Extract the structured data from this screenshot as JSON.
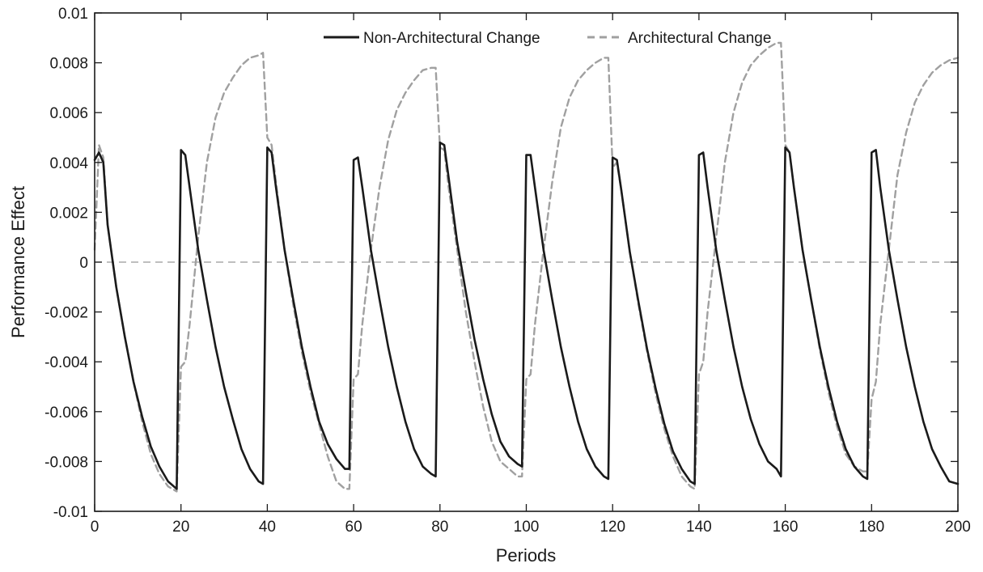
{
  "chart_data": {
    "type": "line",
    "title": "",
    "xlabel": "Periods",
    "ylabel": "Performance Effect",
    "xlim": [
      0,
      200
    ],
    "ylim": [
      -0.01,
      0.01
    ],
    "x_ticks": [
      0,
      20,
      40,
      60,
      80,
      100,
      120,
      140,
      160,
      180,
      200
    ],
    "y_ticks": [
      -0.01,
      -0.008,
      -0.006,
      -0.004,
      -0.002,
      0,
      0.002,
      0.004,
      0.006,
      0.008,
      0.01
    ],
    "x_tick_labels": [
      "0",
      "20",
      "40",
      "60",
      "80",
      "100",
      "120",
      "140",
      "160",
      "180",
      "200"
    ],
    "y_tick_labels": [
      "-0.01",
      "-0.008",
      "-0.006",
      "-0.004",
      "-0.002",
      "0",
      "0.002",
      "0.004",
      "0.006",
      "0.008",
      "0.01"
    ],
    "grid": false,
    "legend_position": "top",
    "reference_line": {
      "y": 0,
      "style": "dashed",
      "color": "#999999"
    },
    "series": [
      {
        "name": "Non-Architectural Change",
        "color": "#1a1a1a",
        "style": "solid",
        "points": [
          [
            0,
            0.0041
          ],
          [
            1,
            0.0044
          ],
          [
            2,
            0.004
          ],
          [
            3,
            0.0015
          ],
          [
            5,
            -0.001
          ],
          [
            7,
            -0.003
          ],
          [
            9,
            -0.0048
          ],
          [
            11,
            -0.0062
          ],
          [
            13,
            -0.0074
          ],
          [
            15,
            -0.0082
          ],
          [
            17,
            -0.0088
          ],
          [
            19,
            -0.0091
          ],
          [
            20,
            0.0045
          ],
          [
            21,
            0.0043
          ],
          [
            22,
            0.003
          ],
          [
            24,
            0.0005
          ],
          [
            26,
            -0.0015
          ],
          [
            28,
            -0.0034
          ],
          [
            30,
            -0.005
          ],
          [
            32,
            -0.0063
          ],
          [
            34,
            -0.0075
          ],
          [
            36,
            -0.0083
          ],
          [
            38,
            -0.0088
          ],
          [
            39,
            -0.0089
          ],
          [
            40,
            0.0046
          ],
          [
            41,
            0.0044
          ],
          [
            42,
            0.003
          ],
          [
            44,
            0.0005
          ],
          [
            46,
            -0.0015
          ],
          [
            48,
            -0.0034
          ],
          [
            50,
            -0.005
          ],
          [
            52,
            -0.0064
          ],
          [
            54,
            -0.0073
          ],
          [
            56,
            -0.0079
          ],
          [
            58,
            -0.0083
          ],
          [
            59,
            -0.0083
          ],
          [
            60,
            0.0041
          ],
          [
            61,
            0.0042
          ],
          [
            62,
            0.003
          ],
          [
            64,
            0.0005
          ],
          [
            66,
            -0.0015
          ],
          [
            68,
            -0.0034
          ],
          [
            70,
            -0.005
          ],
          [
            72,
            -0.0064
          ],
          [
            74,
            -0.0075
          ],
          [
            76,
            -0.0082
          ],
          [
            78,
            -0.0085
          ],
          [
            79,
            -0.0086
          ],
          [
            80,
            0.0048
          ],
          [
            81,
            0.0047
          ],
          [
            82,
            0.0034
          ],
          [
            84,
            0.0008
          ],
          [
            86,
            -0.0012
          ],
          [
            88,
            -0.0031
          ],
          [
            90,
            -0.0047
          ],
          [
            92,
            -0.0061
          ],
          [
            94,
            -0.0072
          ],
          [
            96,
            -0.0078
          ],
          [
            98,
            -0.0081
          ],
          [
            99,
            -0.0082
          ],
          [
            100,
            0.0043
          ],
          [
            101,
            0.0043
          ],
          [
            102,
            0.003
          ],
          [
            104,
            0.0005
          ],
          [
            106,
            -0.0015
          ],
          [
            108,
            -0.0034
          ],
          [
            110,
            -0.005
          ],
          [
            112,
            -0.0064
          ],
          [
            114,
            -0.0075
          ],
          [
            116,
            -0.0082
          ],
          [
            118,
            -0.0086
          ],
          [
            119,
            -0.0087
          ],
          [
            120,
            0.0042
          ],
          [
            121,
            0.0041
          ],
          [
            122,
            0.0029
          ],
          [
            124,
            0.0004
          ],
          [
            126,
            -0.0016
          ],
          [
            128,
            -0.0035
          ],
          [
            130,
            -0.0051
          ],
          [
            132,
            -0.0065
          ],
          [
            134,
            -0.0076
          ],
          [
            136,
            -0.0083
          ],
          [
            138,
            -0.0088
          ],
          [
            139,
            -0.0089
          ],
          [
            140,
            0.0043
          ],
          [
            141,
            0.0044
          ],
          [
            142,
            0.003
          ],
          [
            144,
            0.0005
          ],
          [
            146,
            -0.0015
          ],
          [
            148,
            -0.0034
          ],
          [
            150,
            -0.005
          ],
          [
            152,
            -0.0063
          ],
          [
            154,
            -0.0073
          ],
          [
            156,
            -0.008
          ],
          [
            158,
            -0.0083
          ],
          [
            159,
            -0.0086
          ],
          [
            160,
            0.0046
          ],
          [
            161,
            0.0044
          ],
          [
            162,
            0.003
          ],
          [
            164,
            0.0005
          ],
          [
            166,
            -0.0015
          ],
          [
            168,
            -0.0034
          ],
          [
            170,
            -0.005
          ],
          [
            172,
            -0.0064
          ],
          [
            174,
            -0.0075
          ],
          [
            176,
            -0.0082
          ],
          [
            178,
            -0.0086
          ],
          [
            179,
            -0.0087
          ],
          [
            180,
            0.0044
          ],
          [
            181,
            0.0045
          ],
          [
            182,
            0.003
          ],
          [
            184,
            0.0005
          ],
          [
            186,
            -0.0015
          ],
          [
            188,
            -0.0034
          ],
          [
            190,
            -0.005
          ],
          [
            192,
            -0.0064
          ],
          [
            194,
            -0.0075
          ],
          [
            196,
            -0.0082
          ],
          [
            198,
            -0.0088
          ],
          [
            200,
            -0.0089
          ]
        ]
      },
      {
        "name": "Architectural Change",
        "color": "#a0a0a0",
        "style": "dashed",
        "points": [
          [
            0,
            0.0005
          ],
          [
            1,
            0.0047
          ],
          [
            2,
            0.0042
          ],
          [
            3,
            0.0015
          ],
          [
            5,
            -0.001
          ],
          [
            7,
            -0.003
          ],
          [
            9,
            -0.0048
          ],
          [
            11,
            -0.0064
          ],
          [
            13,
            -0.0077
          ],
          [
            15,
            -0.0085
          ],
          [
            17,
            -0.009
          ],
          [
            19,
            -0.0092
          ],
          [
            20,
            -0.0042
          ],
          [
            21,
            -0.004
          ],
          [
            22,
            -0.0025
          ],
          [
            24,
            0.001
          ],
          [
            26,
            0.004
          ],
          [
            28,
            0.0058
          ],
          [
            30,
            0.0068
          ],
          [
            32,
            0.0074
          ],
          [
            34,
            0.0079
          ],
          [
            36,
            0.0082
          ],
          [
            38,
            0.0083
          ],
          [
            39,
            0.0084
          ],
          [
            40,
            0.005
          ],
          [
            41,
            0.0047
          ],
          [
            42,
            0.0032
          ],
          [
            44,
            0.0005
          ],
          [
            46,
            -0.0017
          ],
          [
            48,
            -0.0036
          ],
          [
            50,
            -0.0052
          ],
          [
            52,
            -0.0065
          ],
          [
            54,
            -0.0078
          ],
          [
            56,
            -0.0088
          ],
          [
            58,
            -0.0091
          ],
          [
            59,
            -0.0091
          ],
          [
            60,
            -0.0047
          ],
          [
            61,
            -0.0045
          ],
          [
            62,
            -0.0025
          ],
          [
            64,
            0.0005
          ],
          [
            66,
            0.003
          ],
          [
            68,
            0.0049
          ],
          [
            70,
            0.0061
          ],
          [
            72,
            0.0068
          ],
          [
            74,
            0.0073
          ],
          [
            76,
            0.0077
          ],
          [
            78,
            0.0078
          ],
          [
            79,
            0.0078
          ],
          [
            80,
            0.0046
          ],
          [
            81,
            0.0045
          ],
          [
            82,
            0.003
          ],
          [
            84,
            0.0005
          ],
          [
            86,
            -0.002
          ],
          [
            88,
            -0.004
          ],
          [
            90,
            -0.0058
          ],
          [
            92,
            -0.0072
          ],
          [
            94,
            -0.008
          ],
          [
            96,
            -0.0083
          ],
          [
            98,
            -0.0086
          ],
          [
            99,
            -0.0086
          ],
          [
            100,
            -0.0047
          ],
          [
            101,
            -0.0045
          ],
          [
            102,
            -0.0025
          ],
          [
            104,
            0.0005
          ],
          [
            106,
            0.0032
          ],
          [
            108,
            0.0054
          ],
          [
            110,
            0.0066
          ],
          [
            112,
            0.0073
          ],
          [
            114,
            0.0077
          ],
          [
            116,
            0.008
          ],
          [
            118,
            0.0082
          ],
          [
            119,
            0.0082
          ],
          [
            120,
            0.0038
          ],
          [
            121,
            0.004
          ],
          [
            122,
            0.0029
          ],
          [
            124,
            0.0004
          ],
          [
            126,
            -0.0017
          ],
          [
            128,
            -0.0036
          ],
          [
            130,
            -0.0053
          ],
          [
            132,
            -0.0067
          ],
          [
            134,
            -0.0078
          ],
          [
            136,
            -0.0086
          ],
          [
            138,
            -0.009
          ],
          [
            139,
            -0.0091
          ],
          [
            140,
            -0.0045
          ],
          [
            141,
            -0.004
          ],
          [
            142,
            -0.002
          ],
          [
            144,
            0.001
          ],
          [
            146,
            0.004
          ],
          [
            148,
            0.006
          ],
          [
            150,
            0.0072
          ],
          [
            152,
            0.0079
          ],
          [
            154,
            0.0083
          ],
          [
            156,
            0.0086
          ],
          [
            158,
            0.0088
          ],
          [
            159,
            0.0088
          ],
          [
            160,
            0.0047
          ],
          [
            161,
            0.0044
          ],
          [
            162,
            0.003
          ],
          [
            164,
            0.0005
          ],
          [
            166,
            -0.0015
          ],
          [
            168,
            -0.0035
          ],
          [
            170,
            -0.0052
          ],
          [
            172,
            -0.0066
          ],
          [
            174,
            -0.0077
          ],
          [
            176,
            -0.0082
          ],
          [
            178,
            -0.0084
          ],
          [
            179,
            -0.0084
          ],
          [
            180,
            -0.0055
          ],
          [
            181,
            -0.0048
          ],
          [
            182,
            -0.0025
          ],
          [
            184,
            0.0005
          ],
          [
            186,
            0.0035
          ],
          [
            188,
            0.0052
          ],
          [
            190,
            0.0064
          ],
          [
            192,
            0.0071
          ],
          [
            194,
            0.0076
          ],
          [
            196,
            0.0079
          ],
          [
            198,
            0.0081
          ],
          [
            200,
            0.0082
          ]
        ]
      }
    ]
  }
}
